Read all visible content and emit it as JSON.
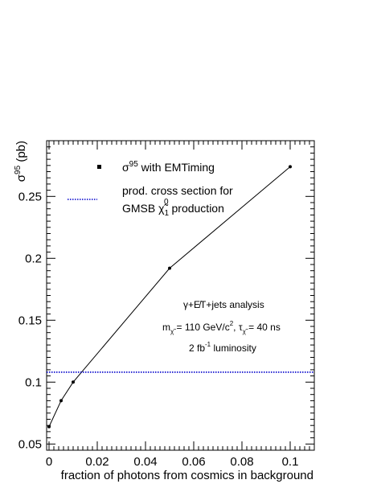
{
  "chart_data": {
    "type": "line",
    "title": "",
    "xlabel": "fraction of photons from cosmics in background",
    "ylabel": "σ⁹⁵ (pb)",
    "xlim": [
      -0.001,
      0.11
    ],
    "ylim": [
      0.045,
      0.295
    ],
    "xticks": [
      0,
      0.02,
      0.04,
      0.06,
      0.08,
      0.1
    ],
    "xtick_labels": [
      "0",
      "0.02",
      "0.04",
      "0.06",
      "0.08",
      "0.1"
    ],
    "yticks": [
      0.05,
      0.1,
      0.15,
      0.2,
      0.25
    ],
    "ytick_labels": [
      "0.05",
      "0.1",
      "0.15",
      "0.2",
      "0.25"
    ],
    "grid": false,
    "legend_position": "top-left",
    "series": [
      {
        "name": "σ95 with EMTiming",
        "type": "line+markers",
        "color": "#000000",
        "x": [
          0,
          0.005,
          0.01,
          0.05,
          0.1
        ],
        "y": [
          0.064,
          0.085,
          0.1,
          0.192,
          0.274
        ]
      },
      {
        "name": "prod. cross section for GMSB χ̃1⁰ production",
        "type": "horizontal-line",
        "color": "#0000cc",
        "y": 0.108
      }
    ],
    "legend": {
      "entry1": {
        "sigma": "σ",
        "sup": "95",
        "rest": " with EMTiming"
      },
      "entry2_line1": "prod. cross section for",
      "entry2_line2": {
        "pre": "GMSB ",
        "chi": "χ̃",
        "sub": "1",
        "sup": "0",
        "post": " production"
      }
    },
    "annotations": {
      "line1": "γ+E̸T+jets analysis",
      "line2": {
        "m": "m",
        "msub": "χ̃",
        "mval": " = 110 GeV/c",
        "msup": "2",
        "sep": ", ",
        "tau": "τ",
        "tausub": "χ̃",
        "tauval": " = 40 ns"
      },
      "line3": {
        "pre": "2 fb",
        "sup": "-1",
        "post": " luminosity"
      }
    }
  }
}
